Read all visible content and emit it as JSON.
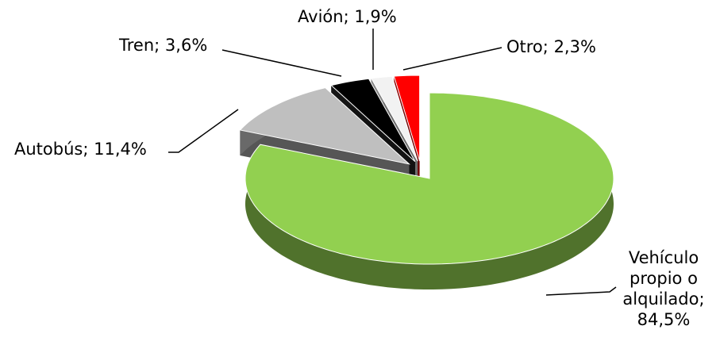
{
  "chart_data": {
    "type": "pie3d",
    "categories": [
      "Vehículo propio o alquilado",
      "Autobús",
      "Tren",
      "Avión",
      "Otro"
    ],
    "values": [
      84.5,
      11.4,
      3.6,
      1.9,
      2.3
    ],
    "value_labels": [
      "84,5%",
      "11,4%",
      "3,6%",
      "1,9%",
      "2,3%"
    ],
    "label_separator": "; ",
    "colors": [
      "#92d050",
      "#bfbfbf",
      "#000000",
      "#f2f2f2",
      "#ff0000"
    ]
  }
}
